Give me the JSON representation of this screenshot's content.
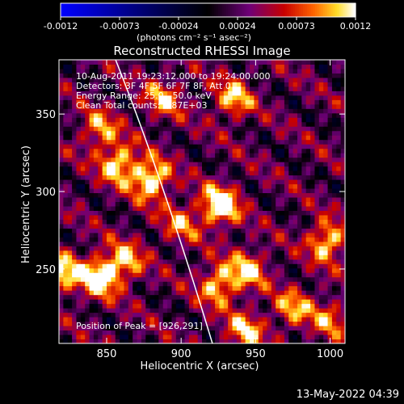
{
  "chart_data": {
    "type": "heatmap",
    "title": "Reconstructed RHESSI Image",
    "xlabel": "Heliocentric X (arcsec)",
    "ylabel": "Heliocentric Y (arcsec)",
    "xlim": [
      818,
      1010
    ],
    "ylim": [
      202,
      385
    ],
    "x_ticks": [
      850,
      900,
      950,
      1000
    ],
    "y_ticks": [
      250,
      300,
      350
    ],
    "colorbar": {
      "min": -0.0012,
      "max": 0.0012,
      "ticks": [
        "-0.0012",
        "-0.00073",
        "-0.00024",
        "0.00024",
        "0.00073",
        "0.0012"
      ],
      "unit_label": "(photons cm⁻² s⁻¹ asec⁻²)"
    },
    "annotations": [
      "10-Aug-2011 19:23:12.000 to 19:24:00.000",
      "Detectors: 3F 4F 5F 6F 7F 8F, Att 0",
      "Energy Range: 25.0 - 50.0 keV",
      "Clean     Total counts: 1.87E+03"
    ],
    "peak_text": "Position of Peak = [926,291]",
    "peak": [
      926,
      291
    ],
    "limb": "white arc (solar limb)",
    "sources": [
      {
        "x": 858,
        "y": 318,
        "v": 0.00095
      },
      {
        "x": 845,
        "y": 340,
        "v": 0.0007
      },
      {
        "x": 880,
        "y": 308,
        "v": 0.0011
      },
      {
        "x": 900,
        "y": 280,
        "v": 0.0006
      },
      {
        "x": 926,
        "y": 291,
        "v": 0.0012
      },
      {
        "x": 935,
        "y": 360,
        "v": 0.0008
      },
      {
        "x": 925,
        "y": 240,
        "v": 0.0009
      },
      {
        "x": 945,
        "y": 250,
        "v": 0.0008
      },
      {
        "x": 943,
        "y": 210,
        "v": 0.0008
      },
      {
        "x": 820,
        "y": 248,
        "v": 0.0009
      },
      {
        "x": 845,
        "y": 245,
        "v": 0.0011
      },
      {
        "x": 862,
        "y": 255,
        "v": 0.0008
      },
      {
        "x": 998,
        "y": 268,
        "v": 0.00095
      },
      {
        "x": 975,
        "y": 225,
        "v": 0.0007
      },
      {
        "x": 1000,
        "y": 218,
        "v": 0.0006
      },
      {
        "x": 888,
        "y": 360,
        "v": 0.0007
      }
    ]
  },
  "footer": {
    "date": "13-May-2022 04:39"
  }
}
